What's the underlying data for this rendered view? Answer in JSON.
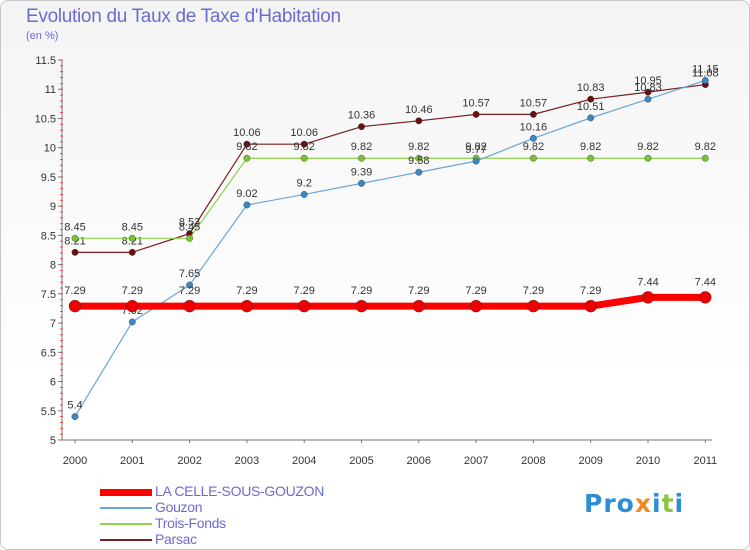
{
  "title": "Evolution du Taux de Taxe d'Habitation",
  "unit": "(en %)",
  "logo": {
    "letters": [
      "P",
      "r",
      "o",
      "x",
      "i",
      "t",
      "i"
    ],
    "colors": [
      "#2c8fd6",
      "#2c8fd6",
      "#2c8fd6",
      "#f08a24",
      "#2c8fd6",
      "#8cc63f",
      "#2c8fd6"
    ]
  },
  "chart_data": {
    "type": "line",
    "x": [
      "2000",
      "2001",
      "2002",
      "2003",
      "2004",
      "2005",
      "2006",
      "2007",
      "2008",
      "2009",
      "2010",
      "2011"
    ],
    "ylim": [
      5,
      11.5
    ],
    "yticks": [
      "5",
      "5.5",
      "6",
      "6.5",
      "7",
      "7.5",
      "8",
      "8.5",
      "9",
      "9.5",
      "10",
      "10.5",
      "11",
      "11.5"
    ],
    "grid": false,
    "legend_position": "bottom-left",
    "series": [
      {
        "name": "Parsac",
        "color": "#7a2020",
        "dot": "#6a0f0f",
        "width": 1.2,
        "r": 3.2,
        "labelDy": -8,
        "values": [
          8.21,
          8.21,
          8.53,
          10.06,
          10.06,
          10.36,
          10.46,
          10.57,
          10.57,
          10.83,
          10.95,
          11.08
        ],
        "labels": [
          "8.21",
          "8.21",
          "8.53",
          "10.06",
          "10.06",
          "10.36",
          "10.46",
          "10.57",
          "10.57",
          "10.83",
          "10.95",
          "11.08"
        ]
      },
      {
        "name": "Trois-Fonds",
        "color": "#8cd448",
        "dot": "#7cc236",
        "width": 1.2,
        "r": 3.2,
        "labelDy": -8,
        "values": [
          8.45,
          8.45,
          8.45,
          9.82,
          9.82,
          9.82,
          9.82,
          9.82,
          9.82,
          9.82,
          9.82,
          9.82
        ],
        "labels": [
          "8.45",
          "8.45",
          "8.45",
          "9.82",
          "9.82",
          "9.82",
          "9.82",
          "9.82",
          "9.82",
          "9.82",
          "9.82",
          "9.82"
        ]
      },
      {
        "name": "Gouzon",
        "color": "#6aa6d6",
        "dot": "#3d88c4",
        "width": 1.2,
        "r": 3.2,
        "labelDy": -8,
        "values": [
          5.4,
          7.02,
          7.65,
          9.02,
          9.2,
          9.39,
          9.58,
          9.77,
          10.16,
          10.51,
          10.83,
          11.15
        ],
        "labels": [
          "5.4",
          "7.02",
          "7.65",
          "9.02",
          "9.2",
          "9.39",
          "9.58",
          "9.77",
          "10.16",
          "10.51",
          "10.83",
          "11.15"
        ]
      },
      {
        "name": "LA CELLE-SOUS-GOUZON",
        "color": "#ff0000",
        "dot": "#ee0000",
        "width": 7,
        "r": 6,
        "labelDy": -12,
        "values": [
          7.29,
          7.29,
          7.29,
          7.29,
          7.29,
          7.29,
          7.29,
          7.29,
          7.29,
          7.29,
          7.44,
          7.44
        ],
        "labels": [
          "7.29",
          "7.29",
          "7.29",
          "7.29",
          "7.29",
          "7.29",
          "7.29",
          "7.29",
          "7.29",
          "7.29",
          "7.44",
          "7.44"
        ]
      }
    ]
  },
  "legend": [
    {
      "name": "LA CELLE-SOUS-GOUZON",
      "color": "#ff0000",
      "thickness": 7
    },
    {
      "name": "Gouzon",
      "color": "#6aa6d6",
      "thickness": 1.5
    },
    {
      "name": "Trois-Fonds",
      "color": "#8cd448",
      "thickness": 1.5
    },
    {
      "name": "Parsac",
      "color": "#7a2020",
      "thickness": 1.5
    }
  ]
}
